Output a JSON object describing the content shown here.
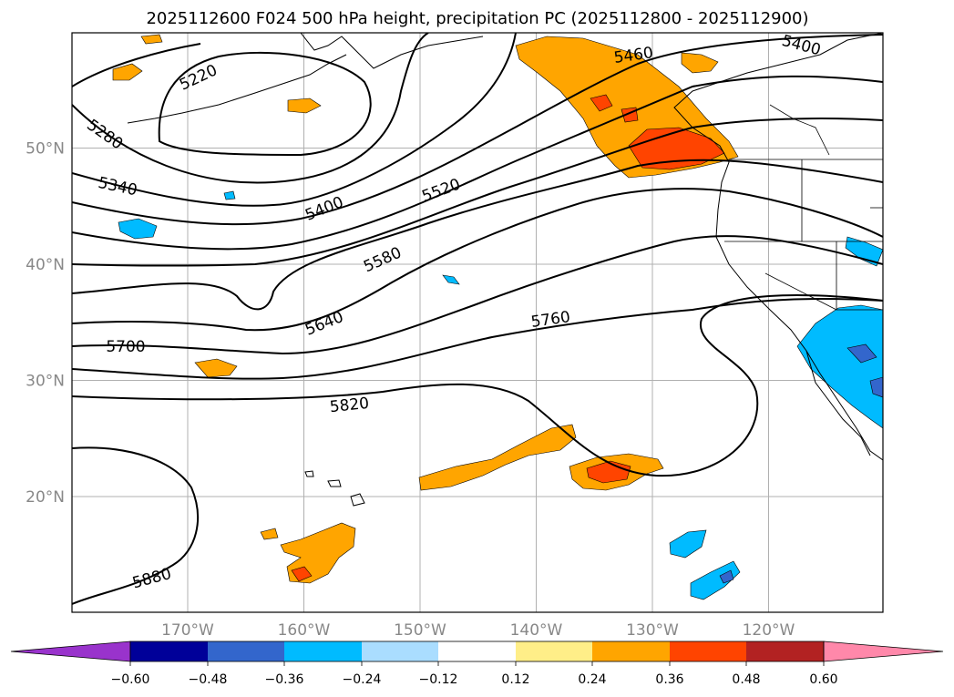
{
  "title": "2025112600 F024 500 hPa height, precipitation PC (2025112800 - 2025112900)",
  "map": {
    "lat_ticks": [
      {
        "label": "50°N",
        "lat": 50
      },
      {
        "label": "40°N",
        "lat": 40
      },
      {
        "label": "30°N",
        "lat": 30
      },
      {
        "label": "20°N",
        "lat": 20
      }
    ],
    "lon_ticks": [
      {
        "label": "170°W",
        "lon": -170
      },
      {
        "label": "160°W",
        "lon": -160
      },
      {
        "label": "150°W",
        "lon": -150
      },
      {
        "label": "140°W",
        "lon": -140
      },
      {
        "label": "130°W",
        "lon": -130
      },
      {
        "label": "120°W",
        "lon": -120
      }
    ],
    "contour_labels": [
      "5220",
      "5280",
      "5340",
      "5400",
      "5400",
      "5460",
      "5520",
      "5580",
      "5640",
      "5700",
      "5760",
      "5820",
      "5880"
    ]
  },
  "colorbar": {
    "tick_labels": [
      "−0.60",
      "−0.48",
      "−0.36",
      "−0.24",
      "−0.12",
      "0.12",
      "0.24",
      "0.36",
      "0.48",
      "0.60"
    ],
    "colors": [
      "#9933cc",
      "#000099",
      "#3366cc",
      "#00bbff",
      "#aaddff",
      "#ffffff",
      "#ffee88",
      "#ffa500",
      "#ff4400",
      "#b22222",
      "#ff88aa"
    ]
  }
}
